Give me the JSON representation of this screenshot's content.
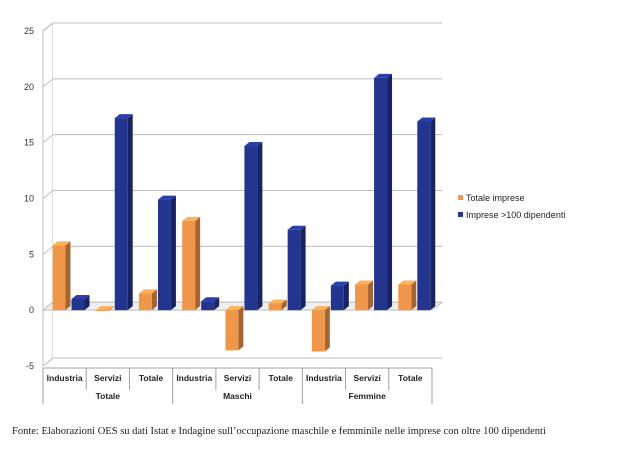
{
  "chart_data": {
    "type": "bar",
    "groups": [
      {
        "label": "Totale",
        "categories": [
          "Industria",
          "Servizi",
          "Totale"
        ]
      },
      {
        "label": "Maschi",
        "categories": [
          "Industria",
          "Servizi",
          "Totale"
        ]
      },
      {
        "label": "Femmine",
        "categories": [
          "Industria",
          "Servizi",
          "Totale"
        ]
      }
    ],
    "series": [
      {
        "name": "Totale imprese",
        "color": "#f0964a",
        "values": [
          5.8,
          0.0,
          1.5,
          8.0,
          -3.6,
          0.6,
          -3.7,
          2.3,
          2.3
        ]
      },
      {
        "name": "Imprese >100 dipendenti",
        "color": "#23358f",
        "values": [
          1.0,
          17.2,
          9.9,
          0.8,
          14.7,
          7.2,
          2.2,
          20.8,
          16.9
        ]
      }
    ],
    "y_ticks": [
      "-5",
      "0",
      "5",
      "10",
      "15",
      "20",
      "25"
    ],
    "ylim": [
      -5,
      25
    ],
    "grid": true,
    "legend_position": "right"
  },
  "source_note": "Fonte: Elaborazioni OES su dati Istat e Indagine sull’occupazione maschile e femminile nelle imprese con oltre 100 dipendenti"
}
